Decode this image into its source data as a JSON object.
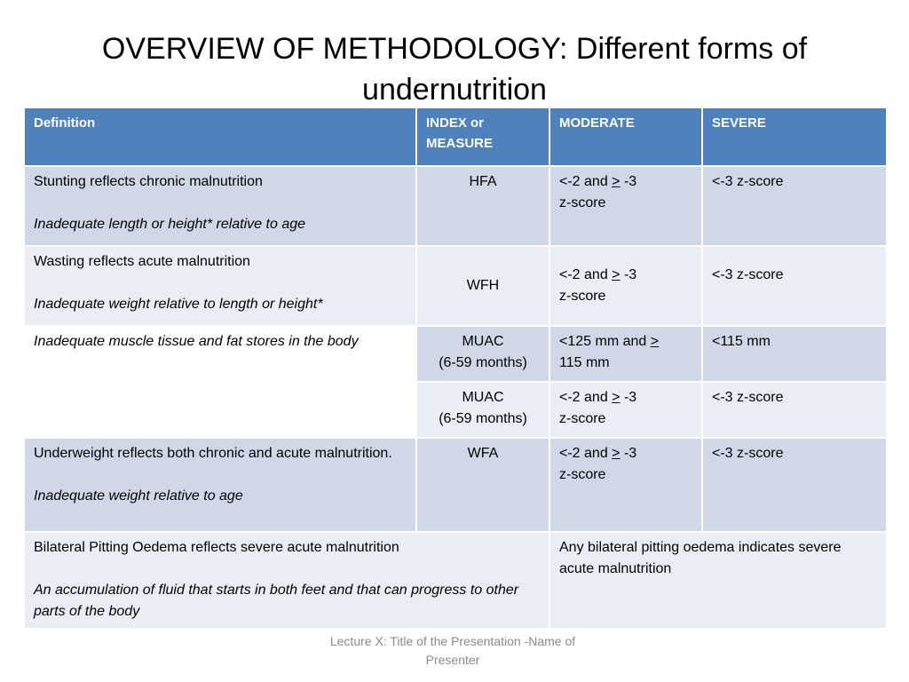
{
  "title": "OVERVIEW OF METHODOLOGY: Different forms of undernutrition",
  "table": {
    "headers": [
      "Definition",
      "INDEX or MEASURE",
      "MODERATE",
      "SEVERE"
    ],
    "stunting": {
      "definition": "Stunting reflects chronic malnutrition",
      "detail": "Inadequate length or height* relative to age",
      "index": "HFA",
      "moderate_pre": "<-2 and ",
      "moderate_gt": ">",
      "moderate_post": " -3",
      "moderate_line2": "z-score",
      "severe": "<-3 z-score"
    },
    "wasting": {
      "definition": "Wasting reflects acute malnutrition",
      "detail": "Inadequate weight relative to length or height*",
      "index": "WFH",
      "moderate_pre": "<-2 and ",
      "moderate_gt": ">",
      "moderate_post": " -3",
      "moderate_line2": "z-score",
      "severe": "<-3 z-score"
    },
    "muac": {
      "detail": "Inadequate muscle tissue and fat stores in the body",
      "row1": {
        "index_line1": "MUAC",
        "index_line2": "(6-59 months)",
        "moderate_pre": "<125 mm and ",
        "moderate_gt": ">",
        "moderate_line2": "115 mm",
        "severe": "<115 mm"
      },
      "row2": {
        "index_line1": "MUAC",
        "index_line2": "(6-59 months)",
        "moderate_pre": "<-2 and ",
        "moderate_gt": ">",
        "moderate_post": " -3",
        "moderate_line2": "z-score",
        "severe": "<-3 z-score"
      }
    },
    "underweight": {
      "definition": "Underweight reflects both chronic and acute malnutrition.",
      "detail": "Inadequate weight relative to age",
      "index": "WFA",
      "moderate_pre": "<-2 and ",
      "moderate_gt": ">",
      "moderate_post": " -3",
      "moderate_line2": "z-score",
      "severe": "<-3 z-score"
    },
    "oedema": {
      "definition": "Bilateral Pitting Oedema reflects severe acute malnutrition",
      "detail": "An accumulation of fluid that starts in both feet and that can progress to other parts of the body",
      "classification": "Any bilateral pitting oedema indicates severe acute malnutrition"
    }
  },
  "footer": "Lecture X: Title of the Presentation -Name of Presenter",
  "colors": {
    "header": "#4f81bd",
    "row_dark": "#d0d8e8",
    "row_light": "#e9edf4",
    "footer_text": "#8a8a8a"
  }
}
